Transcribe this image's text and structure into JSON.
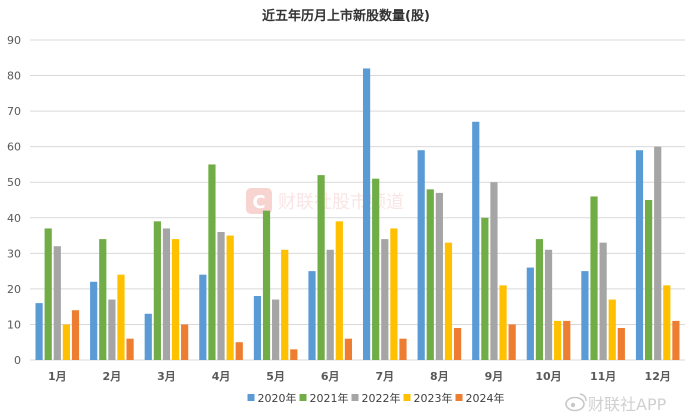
{
  "chart_data": {
    "type": "bar",
    "title": "近五年历月上市新股数量(股)",
    "xlabel": "",
    "ylabel": "",
    "ylim": [
      0,
      90
    ],
    "yticks": [
      0,
      10,
      20,
      30,
      40,
      50,
      60,
      70,
      80,
      90
    ],
    "grid": true,
    "legend_position": "bottom",
    "categories": [
      "1月",
      "2月",
      "3月",
      "4月",
      "5月",
      "6月",
      "7月",
      "8月",
      "9月",
      "10月",
      "11月",
      "12月"
    ],
    "series": [
      {
        "name": "2020年",
        "color": "#5b9bd5",
        "values": [
          16,
          22,
          13,
          24,
          18,
          25,
          82,
          59,
          67,
          26,
          25,
          59
        ]
      },
      {
        "name": "2021年",
        "color": "#70ad47",
        "values": [
          37,
          34,
          39,
          55,
          42,
          52,
          51,
          48,
          40,
          34,
          46,
          45
        ]
      },
      {
        "name": "2022年",
        "color": "#a5a5a5",
        "values": [
          32,
          17,
          37,
          36,
          17,
          31,
          34,
          47,
          50,
          31,
          33,
          60
        ]
      },
      {
        "name": "2023年",
        "color": "#ffc000",
        "values": [
          10,
          24,
          34,
          35,
          31,
          39,
          37,
          33,
          21,
          11,
          17,
          21
        ]
      },
      {
        "name": "2024年",
        "color": "#ed7d31",
        "values": [
          14,
          6,
          10,
          5,
          3,
          6,
          6,
          9,
          10,
          11,
          9,
          11
        ]
      }
    ]
  },
  "watermark": {
    "text": "财联社股市频道",
    "logo_glyph": "C",
    "color": "#e8453c"
  },
  "corner_logo": {
    "text": "财联社APP",
    "icon": "weibo-icon"
  }
}
